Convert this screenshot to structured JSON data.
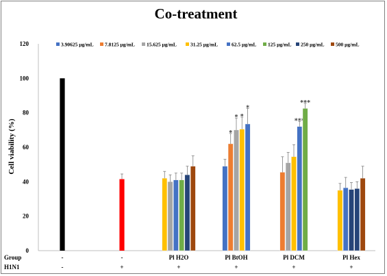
{
  "chart_data": {
    "type": "bar",
    "title": "Co-treatment",
    "ylabel": "Cell viability (%)",
    "ylim": [
      0,
      120
    ],
    "yticks": [
      0,
      20,
      40,
      60,
      80,
      100,
      120
    ],
    "legend_position": "top",
    "grid": false,
    "series": [
      {
        "name": "3.90625 μg/mL",
        "color": "#4472c4"
      },
      {
        "name": "7.8125 μg/mL",
        "color": "#ed7d31"
      },
      {
        "name": "15.625 μg/mL",
        "color": "#a5a5a5"
      },
      {
        "name": "31.25 μg/mL",
        "color": "#ffc000"
      },
      {
        "name": "62.5 μg/mL",
        "color": "#4472c4"
      },
      {
        "name": "125 μg/mL",
        "color": "#70ad47"
      },
      {
        "name": "250 μg/mL",
        "color": "#264478"
      },
      {
        "name": "500 μg/mL",
        "color": "#9e480e"
      }
    ],
    "groups": [
      {
        "group": "-",
        "h1n1": "-",
        "bars": [
          {
            "value": 100,
            "error": 0,
            "color": "#000000"
          }
        ]
      },
      {
        "group": "-",
        "h1n1": "+",
        "bars": [
          {
            "value": 41.5,
            "error": 3,
            "color": "#ff0000"
          }
        ]
      },
      {
        "group": "Pl H2O",
        "h1n1": "+",
        "bars": [
          {
            "series": 3,
            "value": 42,
            "error": 4
          },
          {
            "series": 2,
            "value": 40,
            "error": 4
          },
          {
            "series": 4,
            "value": 41,
            "error": 4
          },
          {
            "series": 5,
            "value": 41,
            "error": 4
          },
          {
            "series": 6,
            "value": 44,
            "error": 5
          },
          {
            "series": 7,
            "value": 49,
            "error": 6
          }
        ]
      },
      {
        "group": "Pl BtOH",
        "h1n1": "+",
        "bars": [
          {
            "series": 0,
            "value": 49,
            "error": 4
          },
          {
            "series": 1,
            "value": 62,
            "error": 6,
            "star": "*"
          },
          {
            "series": 2,
            "value": 70,
            "error": 7,
            "star": "*"
          },
          {
            "series": 3,
            "value": 70.5,
            "error": 7,
            "star": "*"
          },
          {
            "series": 4,
            "value": 73.5,
            "error": 9,
            "star": "*"
          }
        ]
      },
      {
        "group": "Pl DCM",
        "h1n1": "+",
        "bars": [
          {
            "series": 1,
            "value": 45.5,
            "error": 9
          },
          {
            "series": 2,
            "value": 51,
            "error": 6
          },
          {
            "series": 3,
            "value": 54.5,
            "error": 7
          },
          {
            "series": 4,
            "value": 72,
            "error": 3,
            "star": "***"
          },
          {
            "series": 5,
            "value": 82.5,
            "error": 3,
            "star": "***"
          }
        ]
      },
      {
        "group": "Pl Hex",
        "h1n1": "+",
        "bars": [
          {
            "series": 3,
            "value": 35,
            "error": 4
          },
          {
            "series": 4,
            "value": 36.5,
            "error": 6
          },
          {
            "series": 6,
            "value": 35.5,
            "error": 4
          },
          {
            "series": 6,
            "value": 36,
            "error": 4
          },
          {
            "series": 7,
            "value": 42,
            "error": 7
          }
        ]
      }
    ],
    "row_labels": {
      "group": "Group",
      "h1n1": "H1N1"
    }
  }
}
